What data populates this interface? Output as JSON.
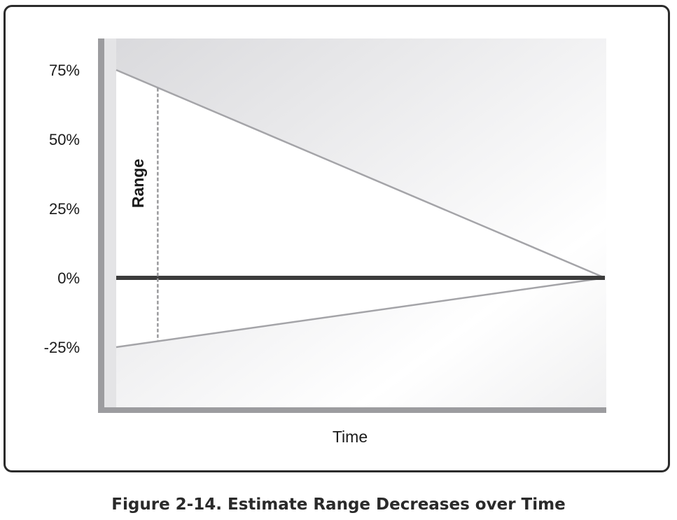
{
  "caption": "Figure 2-14. Estimate Range Decreases over Time",
  "chart_data": {
    "type": "line",
    "title": "",
    "xlabel": "Time",
    "ylabel": "",
    "ylim": [
      -50,
      100
    ],
    "yticks": [
      75,
      50,
      25,
      0,
      -25
    ],
    "ytick_labels": [
      "75%",
      "50%",
      "25%",
      "0%",
      "-25%"
    ],
    "x": [
      0,
      1
    ],
    "series": [
      {
        "values": [
          75,
          0
        ],
        "color": "#a4a4a8"
      },
      {
        "values": [
          -25,
          0
        ],
        "color": "#a4a4a8"
      },
      {
        "values": [
          0,
          0
        ],
        "color": "#3c3c3c"
      }
    ],
    "annotations": [
      {
        "text": "Range",
        "x": 0.085,
        "y_from": -22.5,
        "y_to": 68.5
      }
    ],
    "grid": false,
    "legend": "none"
  }
}
